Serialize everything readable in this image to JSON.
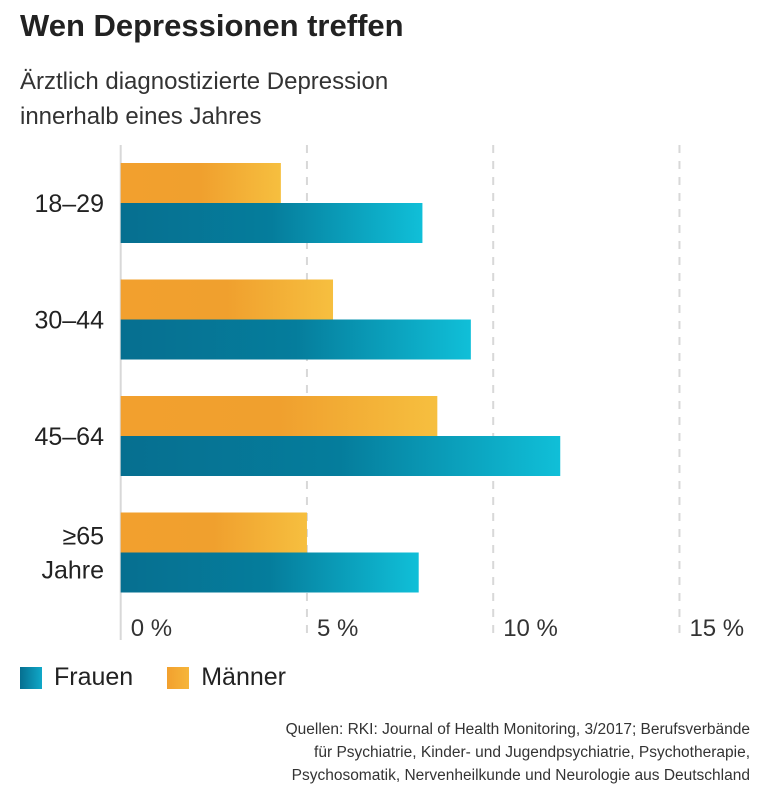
{
  "title": "Wen Depressionen treffen",
  "subtitle_lines": [
    "Ärztlich diagnostizierte Depression",
    "innerhalb eines Jahres"
  ],
  "legend": [
    {
      "label": "Frauen",
      "color": "#0a7fa0"
    },
    {
      "label": "Männer",
      "color": "#f2a02e"
    }
  ],
  "source_lines": [
    "Quellen: RKI: Journal of Health Monitoring, 3/2017; Berufsverbände",
    "für Psychiatrie, Kinder- und Jugendpsychiatrie, Psychotherapie,",
    "Psychosomatik, Nervenheilkunde und Neurologie aus Deutschland"
  ],
  "chart_data": {
    "type": "bar",
    "orientation": "horizontal",
    "title": "Wen Depressionen treffen",
    "subtitle": "Ärztlich diagnostizierte Depression innerhalb eines Jahres",
    "categories": [
      [
        "18–29"
      ],
      [
        "30–44"
      ],
      [
        "45–64"
      ],
      [
        "≥65",
        "Jahre"
      ]
    ],
    "series": [
      {
        "name": "Männer",
        "values": [
          4.3,
          5.7,
          8.5,
          5.0
        ],
        "color_start": "#f2a02e",
        "color_end": "#f6bf3f"
      },
      {
        "name": "Frauen",
        "values": [
          8.1,
          9.4,
          11.8,
          8.0
        ],
        "color_start": "#057d9c",
        "color_end": "#10bfd8"
      }
    ],
    "xlim": [
      0,
      15
    ],
    "xticks": [
      0,
      5,
      10,
      15
    ],
    "xtick_labels": [
      "0 %",
      "5 %",
      "10 %",
      "15 %"
    ],
    "grid": true,
    "legend_position": "bottom-left",
    "xlabel": "",
    "ylabel": ""
  }
}
